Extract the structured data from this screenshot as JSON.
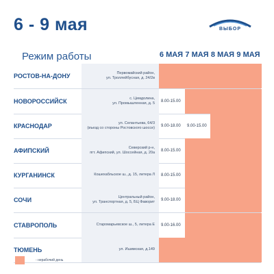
{
  "title": "6 - 9 мая",
  "logo_text": "ВЫБОР",
  "subtitle": "Режим работы",
  "days": [
    "6 МАЯ",
    "7 МАЯ",
    "8 МАЯ",
    "9 МАЯ"
  ],
  "off_color": "#f8a387",
  "rows": [
    {
      "city": "РОСТОВ-НА-ДОНУ",
      "address": "Первомайский район,\nул. Троллейбусная, д. 24/2в",
      "hours": [
        "",
        "",
        "",
        ""
      ],
      "day_off": [
        true,
        true,
        true,
        true
      ]
    },
    {
      "city": "НОВОРОССИЙСК",
      "address": "с. Цемдолина,\nул. Промышленная, д. 5",
      "hours": [
        "8.00-15.00",
        "",
        "",
        ""
      ],
      "day_off": [
        false,
        true,
        true,
        true
      ]
    },
    {
      "city": "КРАСНОДАР",
      "address": "ул. Селантьева, 64/3\n(въезд со стороны Ростовского шоссе)",
      "hours": [
        "9.00-18.00",
        "9.00-15.00",
        "",
        ""
      ],
      "day_off": [
        false,
        false,
        true,
        true
      ]
    },
    {
      "city": "АФИПСКИЙ",
      "address": "Северский р-н,\nпгт. Афипский, ул. Шоссейная, д. 20а",
      "hours": [
        "8.00-15.00",
        "",
        "",
        ""
      ],
      "day_off": [
        false,
        true,
        true,
        true
      ]
    },
    {
      "city": "КУРГАНИНСК",
      "address": "Кошехабльское ш., д. 15, литера Л",
      "hours": [
        "8.00-15.00",
        "",
        "",
        ""
      ],
      "day_off": [
        false,
        true,
        true,
        true
      ]
    },
    {
      "city": "СОЧИ",
      "address": "Центральный район,\nул. Транспортная, д. 5, БЦ Фаворит",
      "hours": [
        "9.00-18.00",
        "",
        "",
        ""
      ],
      "day_off": [
        false,
        true,
        true,
        true
      ]
    },
    {
      "city": "СТАВРОПОЛЬ",
      "address": "Старомарьевское ш., 5, литера Е",
      "hours": [
        "9.00-16.00",
        "",
        "",
        ""
      ],
      "day_off": [
        false,
        true,
        true,
        true
      ]
    },
    {
      "city": "ТЮМЕНЬ",
      "address": "ул. Ишимская, д.149",
      "hours": [
        "",
        "",
        "",
        ""
      ],
      "day_off": [
        true,
        true,
        true,
        true
      ]
    }
  ],
  "legend": "- нерабочий день"
}
